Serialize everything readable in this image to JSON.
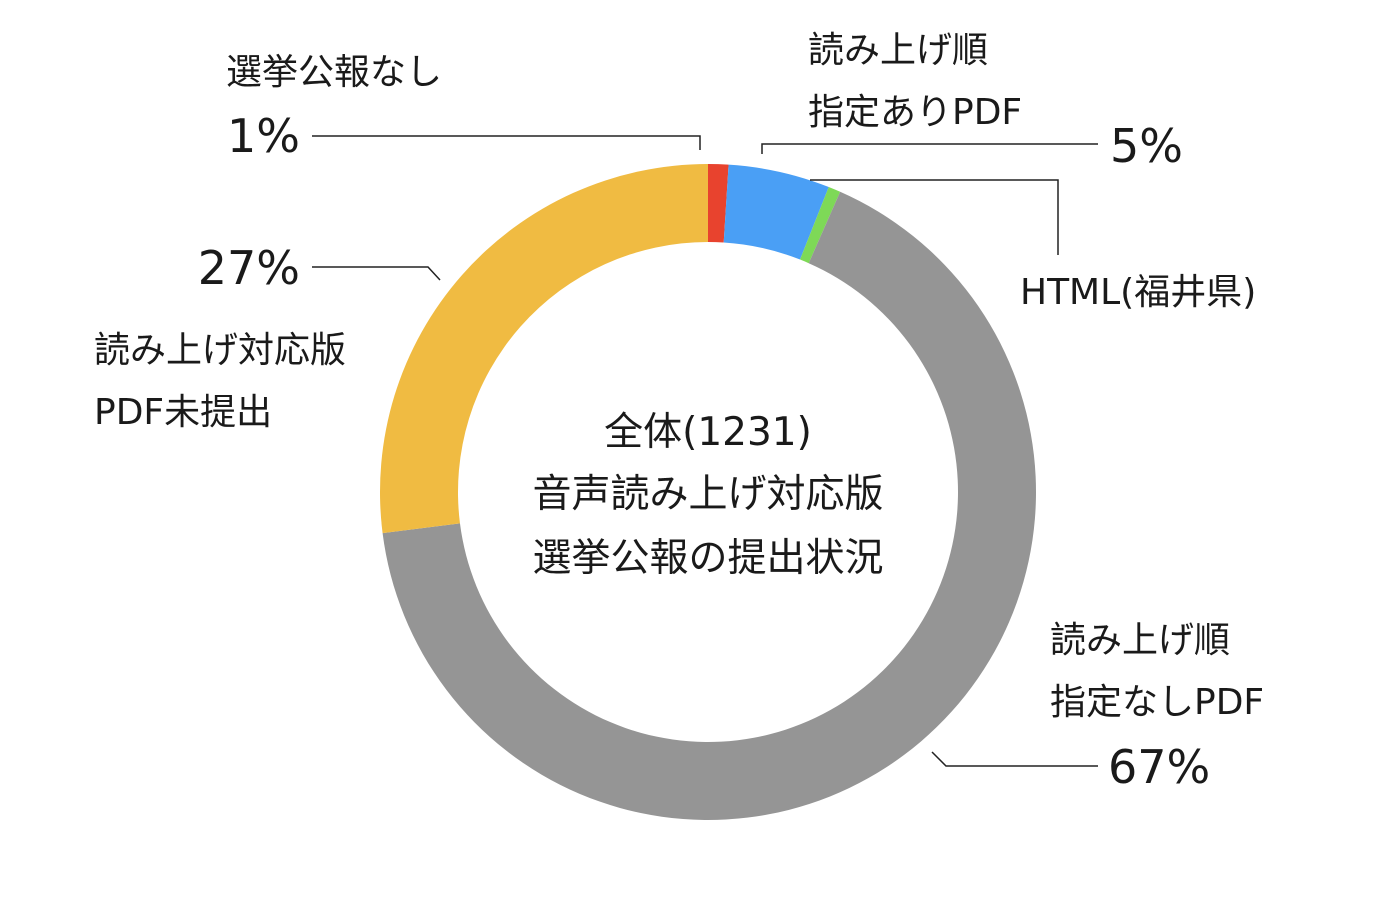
{
  "chart_data": {
    "type": "pie",
    "style": "donut",
    "center_text": [
      "全体(1231)",
      "音声読み上げ対応版",
      "選挙公報の提出状況"
    ],
    "slices": [
      {
        "label": [
          "選挙公報なし"
        ],
        "percent_label": "1%",
        "value": 1.0,
        "color": "#e8432e"
      },
      {
        "label": [
          "読み上げ順",
          "指定ありPDF"
        ],
        "percent_label": "5%",
        "value": 5.0,
        "color": "#4a9ff5"
      },
      {
        "label": [
          "HTML(福井県)"
        ],
        "percent_label": "",
        "value": 0.6,
        "color": "#7ed957"
      },
      {
        "label": [
          "読み上げ順",
          "指定なしPDF"
        ],
        "percent_label": "67%",
        "value": 66.4,
        "color": "#959595"
      },
      {
        "label": [
          "読み上げ対応版",
          "PDF未提出"
        ],
        "percent_label": "27%",
        "value": 27.0,
        "color": "#f0bb42"
      }
    ]
  }
}
